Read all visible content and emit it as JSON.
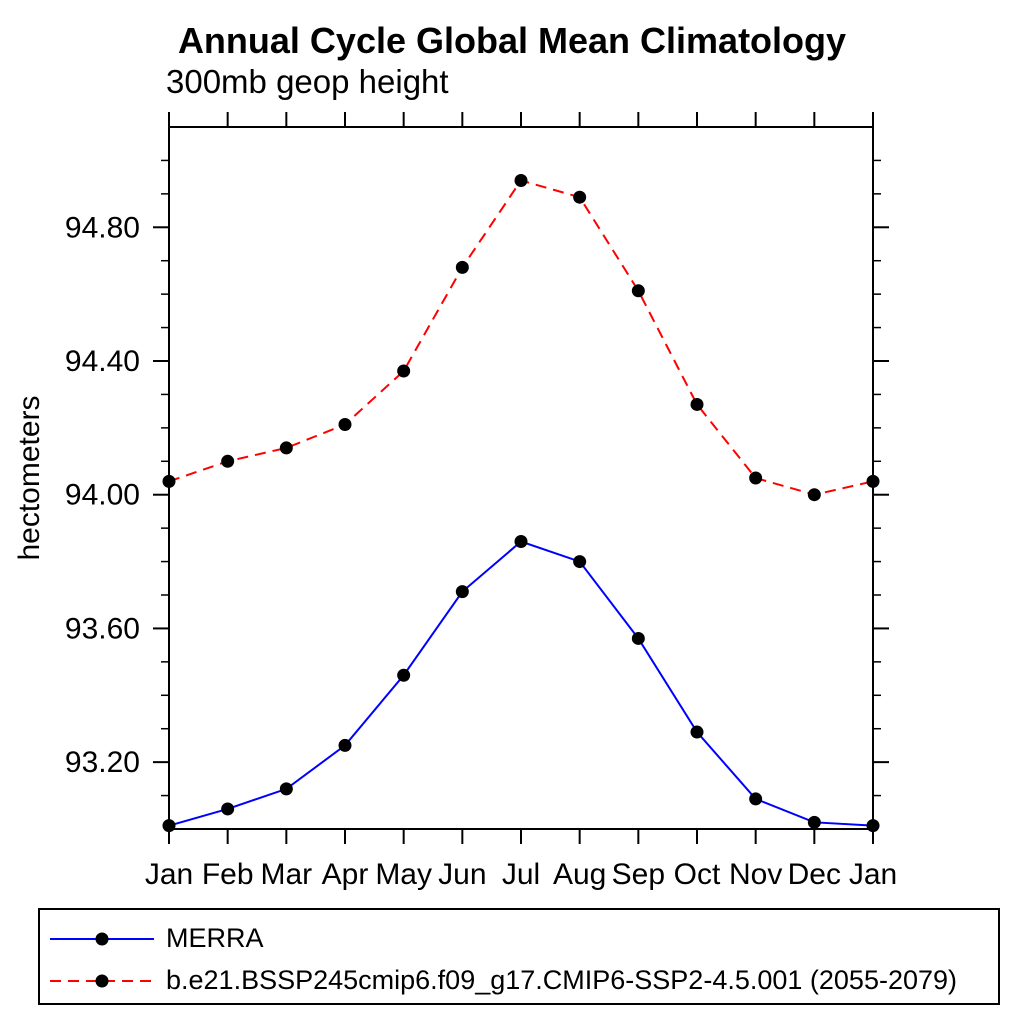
{
  "title": "Annual Cycle Global Mean Climatology",
  "subtitle": "300mb geop height",
  "ylabel": "hectometers",
  "colors": {
    "merra_line": "#0000ff",
    "model_line": "#ff0000",
    "marker": "#000000",
    "axis": "#000000"
  },
  "legend": {
    "entries": [
      {
        "label": "MERRA",
        "color": "#0000ff",
        "line_style": "solid",
        "marker": "filled-circle"
      },
      {
        "label": "b.e21.BSSP245cmip6.f09_g17.CMIP6-SSP2-4.5.001 (2055-2079)",
        "color": "#ff0000",
        "line_style": "dashed",
        "marker": "filled-circle"
      }
    ]
  },
  "chart_data": {
    "type": "line",
    "title": "Annual Cycle Global Mean Climatology",
    "subtitle": "300mb geop height",
    "xlabel": "",
    "ylabel": "hectometers",
    "categories": [
      "Jan",
      "Feb",
      "Mar",
      "Apr",
      "May",
      "Jun",
      "Jul",
      "Aug",
      "Sep",
      "Oct",
      "Nov",
      "Dec",
      "Jan"
    ],
    "series": [
      {
        "name": "MERRA",
        "color": "#0000ff",
        "style": "solid",
        "marker": "circle",
        "marker_color": "#000000",
        "values": [
          93.01,
          93.06,
          93.12,
          93.25,
          93.46,
          93.71,
          93.86,
          93.8,
          93.57,
          93.29,
          93.09,
          93.02,
          93.01
        ]
      },
      {
        "name": "b.e21.BSSP245cmip6.f09_g17.CMIP6-SSP2-4.5.001 (2055-2079)",
        "color": "#ff0000",
        "style": "dashed",
        "marker": "circle",
        "marker_color": "#000000",
        "values": [
          94.04,
          94.1,
          94.14,
          94.21,
          94.37,
          94.68,
          94.94,
          94.89,
          94.61,
          94.27,
          94.05,
          94.0,
          94.04
        ]
      }
    ],
    "ylim": [
      93.0,
      95.1
    ],
    "ytick_values": [
      93.2,
      93.6,
      94.0,
      94.4,
      94.8
    ],
    "ytick_labels": [
      "93.20",
      "93.60",
      "94.00",
      "94.40",
      "94.80"
    ],
    "yminor_step": 0.1,
    "grid": false,
    "legend_position": "bottom"
  }
}
